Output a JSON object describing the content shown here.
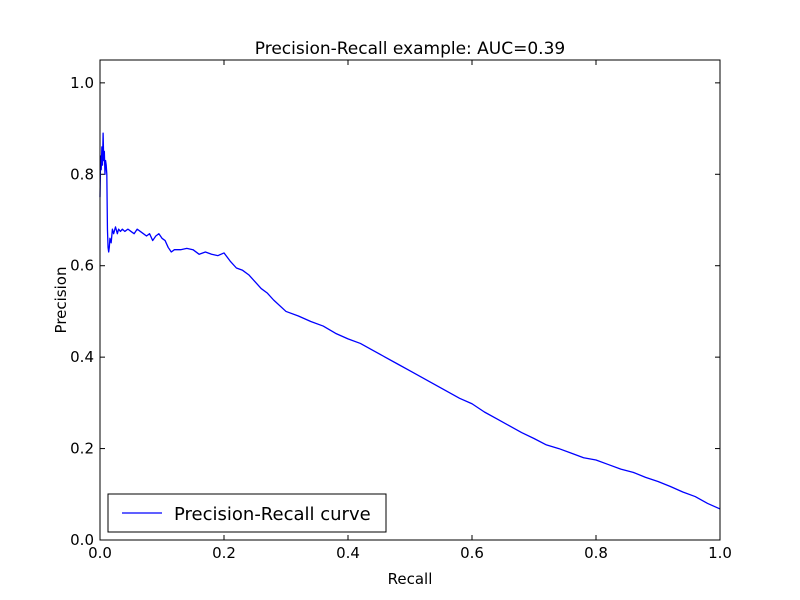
{
  "chart_data": {
    "type": "line",
    "title": "Precision-Recall example: AUC=0.39",
    "xlabel": "Recall",
    "ylabel": "Precision",
    "xlim": [
      0.0,
      1.0
    ],
    "ylim": [
      0.0,
      1.05
    ],
    "grid": false,
    "legend_position": "lower-left",
    "x_ticks": [
      "0.0",
      "0.2",
      "0.4",
      "0.6",
      "0.8",
      "1.0"
    ],
    "y_ticks": [
      "0.0",
      "0.2",
      "0.4",
      "0.6",
      "0.8",
      "1.0"
    ],
    "series": [
      {
        "name": "Precision-Recall curve",
        "color": "#0000ff",
        "x": [
          0.0,
          0.001,
          0.002,
          0.003,
          0.004,
          0.005,
          0.006,
          0.007,
          0.008,
          0.009,
          0.01,
          0.011,
          0.012,
          0.013,
          0.014,
          0.015,
          0.016,
          0.018,
          0.02,
          0.022,
          0.025,
          0.028,
          0.03,
          0.033,
          0.036,
          0.04,
          0.045,
          0.05,
          0.055,
          0.06,
          0.065,
          0.07,
          0.075,
          0.08,
          0.085,
          0.09,
          0.095,
          0.1,
          0.105,
          0.11,
          0.115,
          0.12,
          0.13,
          0.14,
          0.15,
          0.16,
          0.17,
          0.18,
          0.19,
          0.2,
          0.21,
          0.22,
          0.23,
          0.24,
          0.25,
          0.26,
          0.27,
          0.28,
          0.3,
          0.32,
          0.34,
          0.36,
          0.38,
          0.4,
          0.42,
          0.44,
          0.46,
          0.48,
          0.5,
          0.52,
          0.54,
          0.56,
          0.58,
          0.6,
          0.62,
          0.64,
          0.66,
          0.68,
          0.7,
          0.72,
          0.74,
          0.76,
          0.78,
          0.8,
          0.82,
          0.84,
          0.86,
          0.88,
          0.9,
          0.92,
          0.94,
          0.96,
          0.98,
          1.0
        ],
        "y": [
          0.75,
          0.84,
          0.81,
          0.86,
          0.82,
          0.89,
          0.83,
          0.85,
          0.8,
          0.83,
          0.82,
          0.8,
          0.68,
          0.64,
          0.63,
          0.64,
          0.66,
          0.65,
          0.68,
          0.67,
          0.685,
          0.67,
          0.68,
          0.675,
          0.68,
          0.675,
          0.68,
          0.675,
          0.67,
          0.68,
          0.675,
          0.67,
          0.665,
          0.67,
          0.655,
          0.665,
          0.67,
          0.66,
          0.655,
          0.64,
          0.63,
          0.635,
          0.635,
          0.638,
          0.635,
          0.625,
          0.63,
          0.625,
          0.622,
          0.628,
          0.61,
          0.595,
          0.59,
          0.58,
          0.565,
          0.55,
          0.54,
          0.525,
          0.5,
          0.49,
          0.478,
          0.468,
          0.452,
          0.44,
          0.43,
          0.415,
          0.4,
          0.385,
          0.37,
          0.355,
          0.34,
          0.325,
          0.31,
          0.298,
          0.28,
          0.265,
          0.25,
          0.235,
          0.222,
          0.208,
          0.2,
          0.19,
          0.18,
          0.175,
          0.165,
          0.155,
          0.148,
          0.137,
          0.128,
          0.117,
          0.105,
          0.095,
          0.08,
          0.068
        ]
      }
    ]
  }
}
